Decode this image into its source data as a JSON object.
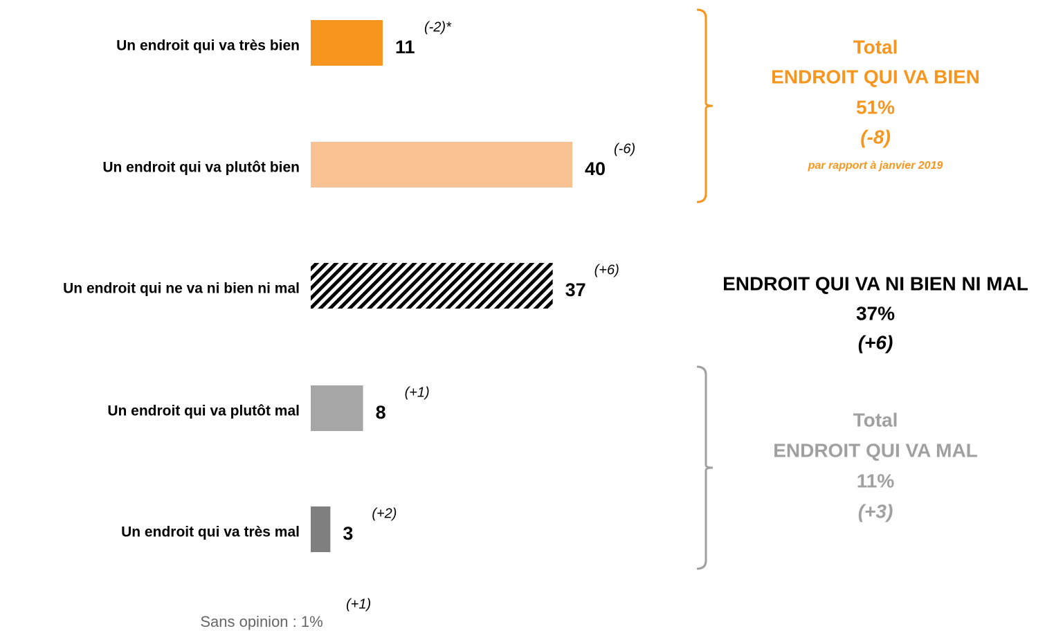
{
  "chart_data": {
    "type": "bar",
    "orientation": "horizontal",
    "categories": [
      "Un endroit qui va très bien",
      "Un endroit qui va plutôt bien",
      "Un endroit qui ne va ni bien ni mal",
      "Un endroit qui va plutôt mal",
      "Un endroit qui va très mal"
    ],
    "values": [
      11,
      40,
      37,
      8,
      3
    ],
    "colors": [
      "#f7961e",
      "#f9c293",
      "#000000",
      "#a6a6a6",
      "#7f7f7f"
    ],
    "hatched": [
      false,
      false,
      true,
      false,
      false
    ],
    "changes": [
      "(-2)*",
      "(-6)",
      "(+6)",
      "(+1)",
      "(+2)"
    ],
    "groups": [
      {
        "title": "Total",
        "name": "ENDROIT QUI VA BIEN",
        "value": 51,
        "value_label": "51%",
        "change": "(-8)",
        "note": "par rapport à janvier 2019",
        "color": "#f7961e",
        "bracket": true
      },
      {
        "name": "ENDROIT QUI VA NI BIEN NI MAL",
        "value": 37,
        "value_label": "37%",
        "change": "(+6)",
        "color": "#000000",
        "bracket": false
      },
      {
        "title": "Total",
        "name": "ENDROIT QUI VA MAL",
        "value": 11,
        "value_label": "11%",
        "change": "(+3)",
        "color": "#a0a0a0",
        "bracket": true
      }
    ],
    "footnote": {
      "text": "Sans opinion : 1%",
      "change": "(+1)"
    }
  }
}
